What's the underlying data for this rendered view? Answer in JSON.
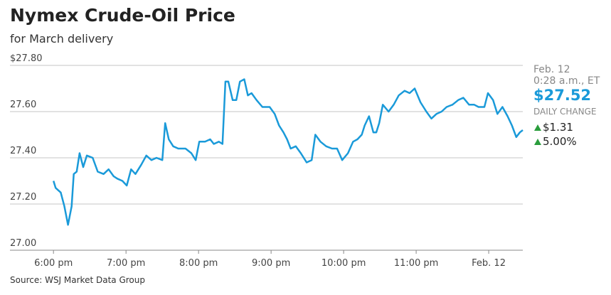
{
  "chart_data": {
    "type": "line",
    "title": "Nymex Crude-Oil Price",
    "subtitle": "for March delivery",
    "source": "Source: WSJ Market Data Group",
    "color": "#1a9ad9",
    "grid": true,
    "xlim": [
      17.4,
      24.47
    ],
    "ylim": [
      27.0,
      27.8
    ],
    "yticks": [
      {
        "value": 27.8,
        "label": "$27.80"
      },
      {
        "value": 27.6,
        "label": "27.60"
      },
      {
        "value": 27.4,
        "label": "27.40"
      },
      {
        "value": 27.2,
        "label": "27.20"
      },
      {
        "value": 27.0,
        "label": "27.00"
      }
    ],
    "xticks": [
      {
        "value": 18,
        "label": "6:00 pm"
      },
      {
        "value": 19,
        "label": "7:00 pm"
      },
      {
        "value": 20,
        "label": "8:00 pm"
      },
      {
        "value": 21,
        "label": "9:00 pm"
      },
      {
        "value": 22,
        "label": "10:00 pm"
      },
      {
        "value": 23,
        "label": "11:00 pm"
      },
      {
        "value": 24,
        "label": "Feb. 12"
      }
    ],
    "x": [
      18.0,
      18.03,
      18.1,
      18.15,
      18.2,
      18.25,
      18.28,
      18.32,
      18.36,
      18.41,
      18.46,
      18.54,
      18.61,
      18.69,
      18.76,
      18.83,
      18.88,
      18.95,
      19.01,
      19.07,
      19.13,
      19.21,
      19.28,
      19.35,
      19.42,
      19.5,
      19.54,
      19.59,
      19.65,
      19.72,
      19.82,
      19.9,
      19.96,
      20.01,
      20.09,
      20.16,
      20.21,
      20.28,
      20.33,
      20.37,
      20.41,
      20.47,
      20.52,
      20.57,
      20.63,
      20.68,
      20.73,
      20.8,
      20.88,
      20.98,
      21.05,
      21.11,
      21.17,
      21.22,
      21.27,
      21.34,
      21.41,
      21.49,
      21.56,
      21.61,
      21.68,
      21.76,
      21.84,
      21.91,
      21.98,
      22.06,
      22.13,
      22.19,
      22.25,
      22.29,
      22.35,
      22.41,
      22.45,
      22.49,
      22.54,
      22.62,
      22.69,
      22.76,
      22.84,
      22.91,
      22.98,
      23.06,
      23.14,
      23.21,
      23.28,
      23.35,
      23.42,
      23.5,
      23.58,
      23.65,
      23.73,
      23.8,
      23.86,
      23.94,
      23.99,
      24.06,
      24.12,
      24.19,
      24.26,
      24.32,
      24.38,
      24.43,
      24.47
    ],
    "values": [
      27.3,
      27.27,
      27.25,
      27.19,
      27.11,
      27.19,
      27.33,
      27.34,
      27.42,
      27.36,
      27.41,
      27.4,
      27.34,
      27.33,
      27.35,
      27.32,
      27.31,
      27.3,
      27.28,
      27.35,
      27.33,
      27.37,
      27.41,
      27.39,
      27.4,
      27.39,
      27.55,
      27.48,
      27.45,
      27.44,
      27.44,
      27.42,
      27.39,
      27.47,
      27.47,
      27.48,
      27.46,
      27.47,
      27.46,
      27.73,
      27.73,
      27.65,
      27.65,
      27.73,
      27.74,
      27.67,
      27.68,
      27.65,
      27.62,
      27.62,
      27.59,
      27.54,
      27.51,
      27.48,
      27.44,
      27.45,
      27.42,
      27.38,
      27.39,
      27.5,
      27.47,
      27.45,
      27.44,
      27.44,
      27.39,
      27.42,
      27.47,
      27.48,
      27.5,
      27.54,
      27.58,
      27.51,
      27.51,
      27.55,
      27.63,
      27.6,
      27.63,
      27.67,
      27.69,
      27.68,
      27.7,
      27.64,
      27.6,
      27.57,
      27.59,
      27.6,
      27.62,
      27.63,
      27.65,
      27.66,
      27.63,
      27.63,
      27.62,
      27.62,
      27.68,
      27.65,
      27.59,
      27.62,
      27.58,
      27.54,
      27.49,
      27.51,
      27.52
    ],
    "annotations": {
      "date": "Feb. 12",
      "time": "0:28 a.m., ET",
      "price": "$27.52",
      "change_label": "DAILY CHANGE",
      "change": "$1.31",
      "change_pct": "5.00%"
    }
  }
}
